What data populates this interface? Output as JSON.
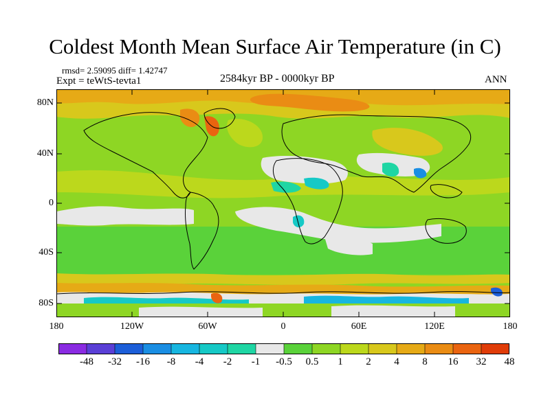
{
  "title": "Coldest Month Mean Surface Air Temperature (in C)",
  "stats": "rmsd= 2.59095 diff= 1.42747",
  "experiment": "Expt = teWtS-tevta1",
  "period": "2584kyr BP - 0000kyr BP",
  "season": "ANN",
  "lat_labels": [
    "80N",
    "40N",
    "0",
    "40S",
    "80S"
  ],
  "lon_labels": [
    "180",
    "120W",
    "60W",
    "0",
    "60E",
    "120E",
    "180"
  ],
  "legend": {
    "labels": [
      "-48",
      "-32",
      "-16",
      "-8",
      "-4",
      "-2",
      "-1",
      "-0.5",
      "0.5",
      "1",
      "2",
      "4",
      "8",
      "16",
      "32",
      "48"
    ],
    "colors": [
      "#8a2be2",
      "#5a3fd6",
      "#1c5ed8",
      "#1a8ee3",
      "#17b6e0",
      "#16c9c6",
      "#1fd6a4",
      "#e8e8e8",
      "#5ad23a",
      "#8ed624",
      "#bcd81c",
      "#d8c81c",
      "#e6aa16",
      "#ea8c14",
      "#ea6410",
      "#e03c08"
    ]
  },
  "colors": {
    "land_outline": "#000000",
    "ocean_default": "#8ed624"
  }
}
